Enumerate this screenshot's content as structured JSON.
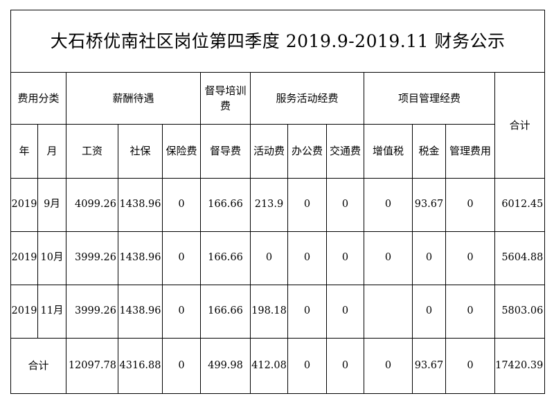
{
  "title": "大石桥优南社区岗位第四季度 2019.9-2019.11 财务公示",
  "header_groups": {
    "category": "费用分类",
    "salary": "薪酬待遇",
    "supervision": "督导培训费",
    "service": "服务活动经费",
    "project": "项目管理经费",
    "total": "合计"
  },
  "columns": {
    "year": "年",
    "month": "月",
    "wage": "工资",
    "social_security": "社保",
    "insurance": "保险费",
    "supervision_fee": "督导费",
    "activity_fee": "活动费",
    "office_fee": "办公费",
    "transport_fee": "交通费",
    "vat": "增值税",
    "tax": "税金",
    "management_fee": "管理费用"
  },
  "rows": [
    {
      "year": "2019",
      "month": "9月",
      "wage": "4099.26",
      "social_security": "1438.96",
      "insurance": "0",
      "supervision_fee": "166.66",
      "activity_fee": "213.9",
      "office_fee": "0",
      "transport_fee": "0",
      "vat": "0",
      "tax": "93.67",
      "management_fee": "0",
      "total": "6012.45"
    },
    {
      "year": "2019",
      "month": "10月",
      "wage": "3999.26",
      "social_security": "1438.96",
      "insurance": "0",
      "supervision_fee": "166.66",
      "activity_fee": "0",
      "office_fee": "0",
      "transport_fee": "0",
      "vat": "0",
      "tax": "0",
      "management_fee": "0",
      "total": "5604.88"
    },
    {
      "year": "2019",
      "month": "11月",
      "wage": "3999.26",
      "social_security": "1438.96",
      "insurance": "0",
      "supervision_fee": "166.66",
      "activity_fee": "198.18",
      "office_fee": "0",
      "transport_fee": "0",
      "vat": "",
      "tax": "0",
      "management_fee": "0",
      "total": "5803.06"
    }
  ],
  "totals": {
    "label": "合计",
    "wage": "12097.78",
    "social_security": "4316.88",
    "insurance": "0",
    "supervision_fee": "499.98",
    "activity_fee": "412.08",
    "office_fee": "0",
    "transport_fee": "0",
    "vat": "0",
    "tax": "93.67",
    "management_fee": "0",
    "total": "17420.39"
  }
}
